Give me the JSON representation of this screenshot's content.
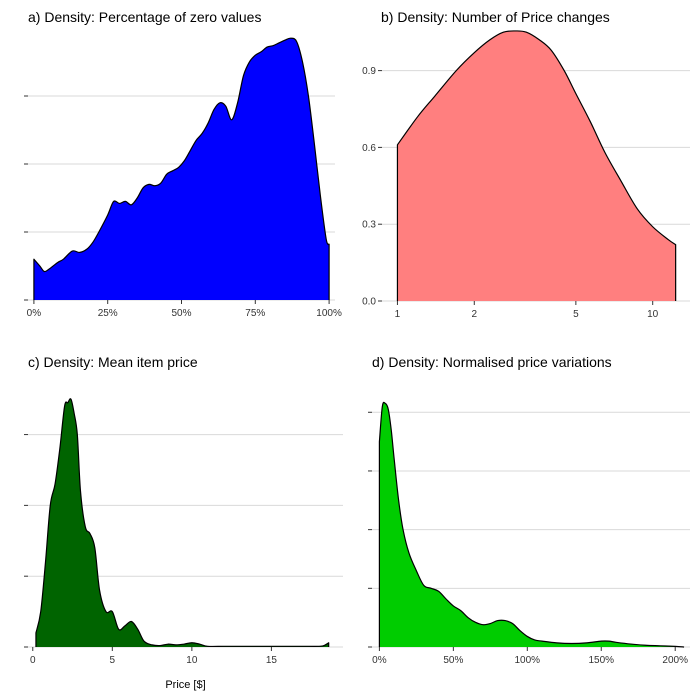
{
  "chart_data": [
    {
      "id": "a",
      "type": "area",
      "title": "a) Density: Percentage of zero values",
      "xlabel": "",
      "ylabel": "",
      "x_scale": "linear",
      "xlim": [
        -0.02,
        1.02
      ],
      "ylim": [
        0,
        3.75
      ],
      "x_ticks": [
        0,
        0.25,
        0.5,
        0.75,
        1.0
      ],
      "x_tick_labels": [
        "0%",
        "25%",
        "50%",
        "75%",
        "100%"
      ],
      "y_ticks": [
        0,
        1,
        2,
        3
      ],
      "y_tick_labels": [
        "",
        "",
        "",
        ""
      ],
      "fill": "#0000ff",
      "x": [
        0,
        0.02,
        0.035,
        0.05,
        0.08,
        0.1,
        0.13,
        0.155,
        0.18,
        0.2,
        0.22,
        0.25,
        0.27,
        0.29,
        0.31,
        0.33,
        0.35,
        0.37,
        0.39,
        0.41,
        0.43,
        0.45,
        0.47,
        0.49,
        0.51,
        0.53,
        0.55,
        0.57,
        0.59,
        0.61,
        0.63,
        0.65,
        0.67,
        0.69,
        0.71,
        0.73,
        0.75,
        0.77,
        0.79,
        0.81,
        0.83,
        0.85,
        0.87,
        0.89,
        0.91,
        0.93,
        0.95,
        0.97,
        0.99,
        1.0
      ],
      "y": [
        0.6,
        0.5,
        0.42,
        0.45,
        0.55,
        0.6,
        0.72,
        0.7,
        0.75,
        0.85,
        1.0,
        1.25,
        1.45,
        1.42,
        1.45,
        1.4,
        1.5,
        1.65,
        1.7,
        1.68,
        1.72,
        1.85,
        1.9,
        1.95,
        2.05,
        2.2,
        2.35,
        2.45,
        2.6,
        2.8,
        2.9,
        2.85,
        2.65,
        2.9,
        3.3,
        3.5,
        3.6,
        3.65,
        3.72,
        3.74,
        3.78,
        3.82,
        3.85,
        3.8,
        3.5,
        3.0,
        2.3,
        1.55,
        0.9,
        0.82
      ]
    },
    {
      "id": "b",
      "type": "area",
      "title": "b) Density: Number of Price changes",
      "xlabel": "",
      "ylabel": "",
      "x_scale": "log",
      "xlim": [
        0.87,
        14
      ],
      "ylim": [
        0,
        1.0
      ],
      "x_ticks": [
        1,
        2,
        5,
        10
      ],
      "x_tick_labels": [
        "1",
        "2",
        "5",
        "10"
      ],
      "y_ticks": [
        0,
        0.3,
        0.6,
        0.9
      ],
      "y_tick_labels": [
        "0.0",
        "0.3",
        "0.6",
        "0.9"
      ],
      "fill": "#ff7f7f",
      "x": [
        1.0,
        1.2,
        1.4,
        1.7,
        2.0,
        2.3,
        2.6,
        2.9,
        3.2,
        3.6,
        4.0,
        4.5,
        5.0,
        5.7,
        6.5,
        7.5,
        8.7,
        10.0,
        11.5,
        12.3
      ],
      "y": [
        0.61,
        0.72,
        0.8,
        0.9,
        0.97,
        1.02,
        1.05,
        1.055,
        1.05,
        1.02,
        0.98,
        0.9,
        0.81,
        0.7,
        0.58,
        0.47,
        0.36,
        0.29,
        0.24,
        0.22
      ]
    },
    {
      "id": "c",
      "type": "area",
      "title": "c) Density: Mean item price",
      "xlabel": "Price [$]",
      "ylabel": "",
      "x_scale": "linear",
      "xlim": [
        -0.3,
        19.5
      ],
      "ylim": [
        0,
        0.37
      ],
      "x_ticks": [
        0,
        5,
        10,
        15
      ],
      "x_tick_labels": [
        "0",
        "5",
        "10",
        "15"
      ],
      "y_ticks": [
        0,
        0.1,
        0.2,
        0.3
      ],
      "y_tick_labels": [
        "",
        "",
        "",
        ""
      ],
      "fill": "#006400",
      "x": [
        0.2,
        0.5,
        0.8,
        1.1,
        1.4,
        1.7,
        2.0,
        2.2,
        2.4,
        2.6,
        2.8,
        3.0,
        3.3,
        3.6,
        3.9,
        4.2,
        4.6,
        5.0,
        5.4,
        5.8,
        6.2,
        6.6,
        7.0,
        7.5,
        8.0,
        8.5,
        9.0,
        9.5,
        10.0,
        10.5,
        11.0,
        12.0,
        13.0,
        14.0,
        15.0,
        16.0,
        17.0,
        18.0,
        18.3,
        18.6
      ],
      "y": [
        0.02,
        0.05,
        0.12,
        0.2,
        0.23,
        0.28,
        0.34,
        0.345,
        0.35,
        0.33,
        0.3,
        0.22,
        0.17,
        0.16,
        0.14,
        0.08,
        0.05,
        0.05,
        0.025,
        0.03,
        0.036,
        0.025,
        0.008,
        0.003,
        0.002,
        0.004,
        0.003,
        0.004,
        0.006,
        0.004,
        0.001,
        0.001,
        0.001,
        0.001,
        0.001,
        0.001,
        0.001,
        0.001,
        0.002,
        0.006
      ]
    },
    {
      "id": "d",
      "type": "area",
      "title": "d) Density: Normalised price variations",
      "xlabel": "",
      "ylabel": "",
      "x_scale": "linear",
      "xlim": [
        -0.05,
        2.1
      ],
      "ylim": [
        0,
        4.55
      ],
      "x_ticks": [
        0,
        0.5,
        1.0,
        1.5,
        2.0
      ],
      "x_tick_labels": [
        "0%",
        "50%",
        "100%",
        "150%",
        "200%"
      ],
      "y_ticks": [
        0,
        1,
        2,
        3,
        4
      ],
      "y_tick_labels": [
        "",
        "",
        "",
        "",
        ""
      ],
      "fill": "#00cc00",
      "x": [
        0,
        0.02,
        0.04,
        0.06,
        0.08,
        0.1,
        0.13,
        0.16,
        0.2,
        0.25,
        0.3,
        0.35,
        0.4,
        0.45,
        0.5,
        0.55,
        0.6,
        0.65,
        0.7,
        0.75,
        0.8,
        0.85,
        0.9,
        0.95,
        1.0,
        1.05,
        1.1,
        1.2,
        1.3,
        1.4,
        1.5,
        1.55,
        1.6,
        1.7,
        1.8,
        1.9,
        2.0,
        2.06
      ],
      "y": [
        3.5,
        4.1,
        4.15,
        4.05,
        3.7,
        3.2,
        2.5,
        2.0,
        1.6,
        1.3,
        1.05,
        1.0,
        0.95,
        0.82,
        0.7,
        0.62,
        0.5,
        0.42,
        0.38,
        0.4,
        0.45,
        0.45,
        0.4,
        0.28,
        0.18,
        0.12,
        0.1,
        0.07,
        0.06,
        0.07,
        0.1,
        0.1,
        0.08,
        0.05,
        0.03,
        0.02,
        0.01,
        0.0
      ]
    }
  ]
}
